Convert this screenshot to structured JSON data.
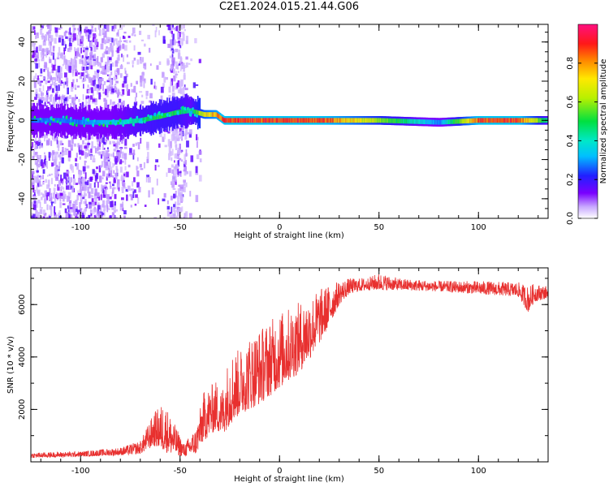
{
  "title": "C2E1.2024.015.21.44.G06",
  "colors": {
    "snr_line": "#e8302f",
    "ridge_peak": "#e0103f",
    "background": "#ffffff"
  },
  "chart_data": [
    {
      "type": "heatmap",
      "xlabel": "Height of straight line (km)",
      "ylabel": "Frequency (Hz)",
      "xlim": [
        -125,
        135
      ],
      "ylim": [
        -50,
        49
      ],
      "xticks": [
        -100,
        -50,
        0,
        50,
        100
      ],
      "yticks": [
        -40,
        -20,
        0,
        20,
        40
      ],
      "ridge": {
        "x": [
          -125,
          -110,
          -100,
          -90,
          -80,
          -70,
          -60,
          -52,
          -45,
          -38,
          -32,
          -28,
          -20,
          -10,
          0,
          20,
          50,
          80,
          100,
          120,
          135
        ],
        "frequency": [
          0,
          0,
          -1,
          -1,
          -1,
          0,
          2,
          4,
          5,
          3,
          3,
          0,
          0,
          0,
          0,
          0,
          0,
          -1,
          0,
          0,
          0
        ],
        "amplitude": [
          0.3,
          0.3,
          0.3,
          0.35,
          0.4,
          0.5,
          0.55,
          0.55,
          0.45,
          0.75,
          0.85,
          0.95,
          0.95,
          0.95,
          0.95,
          0.95,
          0.65,
          0.3,
          0.95,
          0.95,
          0.45
        ]
      },
      "colorbar": {
        "label": "Normalized spectral amplitude",
        "range": [
          0,
          1
        ],
        "ticks": [
          "0.0",
          "0.2",
          "0.4",
          "0.6",
          "0.8"
        ],
        "tick_values": [
          0,
          0.2,
          0.4,
          0.6,
          0.8
        ]
      }
    },
    {
      "type": "line",
      "xlabel": "Height of straight line (km)",
      "ylabel": "SNR (10 * v/v)",
      "xlim": [
        -125,
        135
      ],
      "ylim": [
        0,
        7400
      ],
      "xticks": [
        -100,
        -50,
        0,
        50,
        100
      ],
      "yticks": [
        2000,
        4000,
        6000
      ],
      "envelope": {
        "x": [
          -125,
          -100,
          -80,
          -70,
          -63,
          -58,
          -55,
          -48,
          -42,
          -38,
          -32,
          -29,
          -25,
          -20,
          -15,
          -10,
          -5,
          0,
          5,
          10,
          15,
          20,
          25,
          30,
          35,
          40,
          45,
          50,
          60,
          80,
          100,
          120,
          125,
          128,
          135
        ],
        "low": [
          150,
          200,
          250,
          300,
          600,
          400,
          300,
          200,
          300,
          800,
          1200,
          1000,
          1400,
          1800,
          2000,
          2200,
          2500,
          2800,
          3100,
          3400,
          3900,
          4500,
          5200,
          6000,
          6400,
          6500,
          6550,
          6550,
          6550,
          6500,
          6400,
          6300,
          5700,
          6100,
          6250
        ],
        "high": [
          350,
          400,
          550,
          800,
          1900,
          2300,
          1800,
          700,
          1300,
          2700,
          3100,
          2800,
          4200,
          4300,
          4800,
          5100,
          5400,
          5700,
          5900,
          6100,
          6300,
          6600,
          6750,
          6900,
          7000,
          7000,
          7050,
          7200,
          7000,
          6900,
          6900,
          6850,
          6700,
          6800,
          6700
        ]
      }
    }
  ]
}
